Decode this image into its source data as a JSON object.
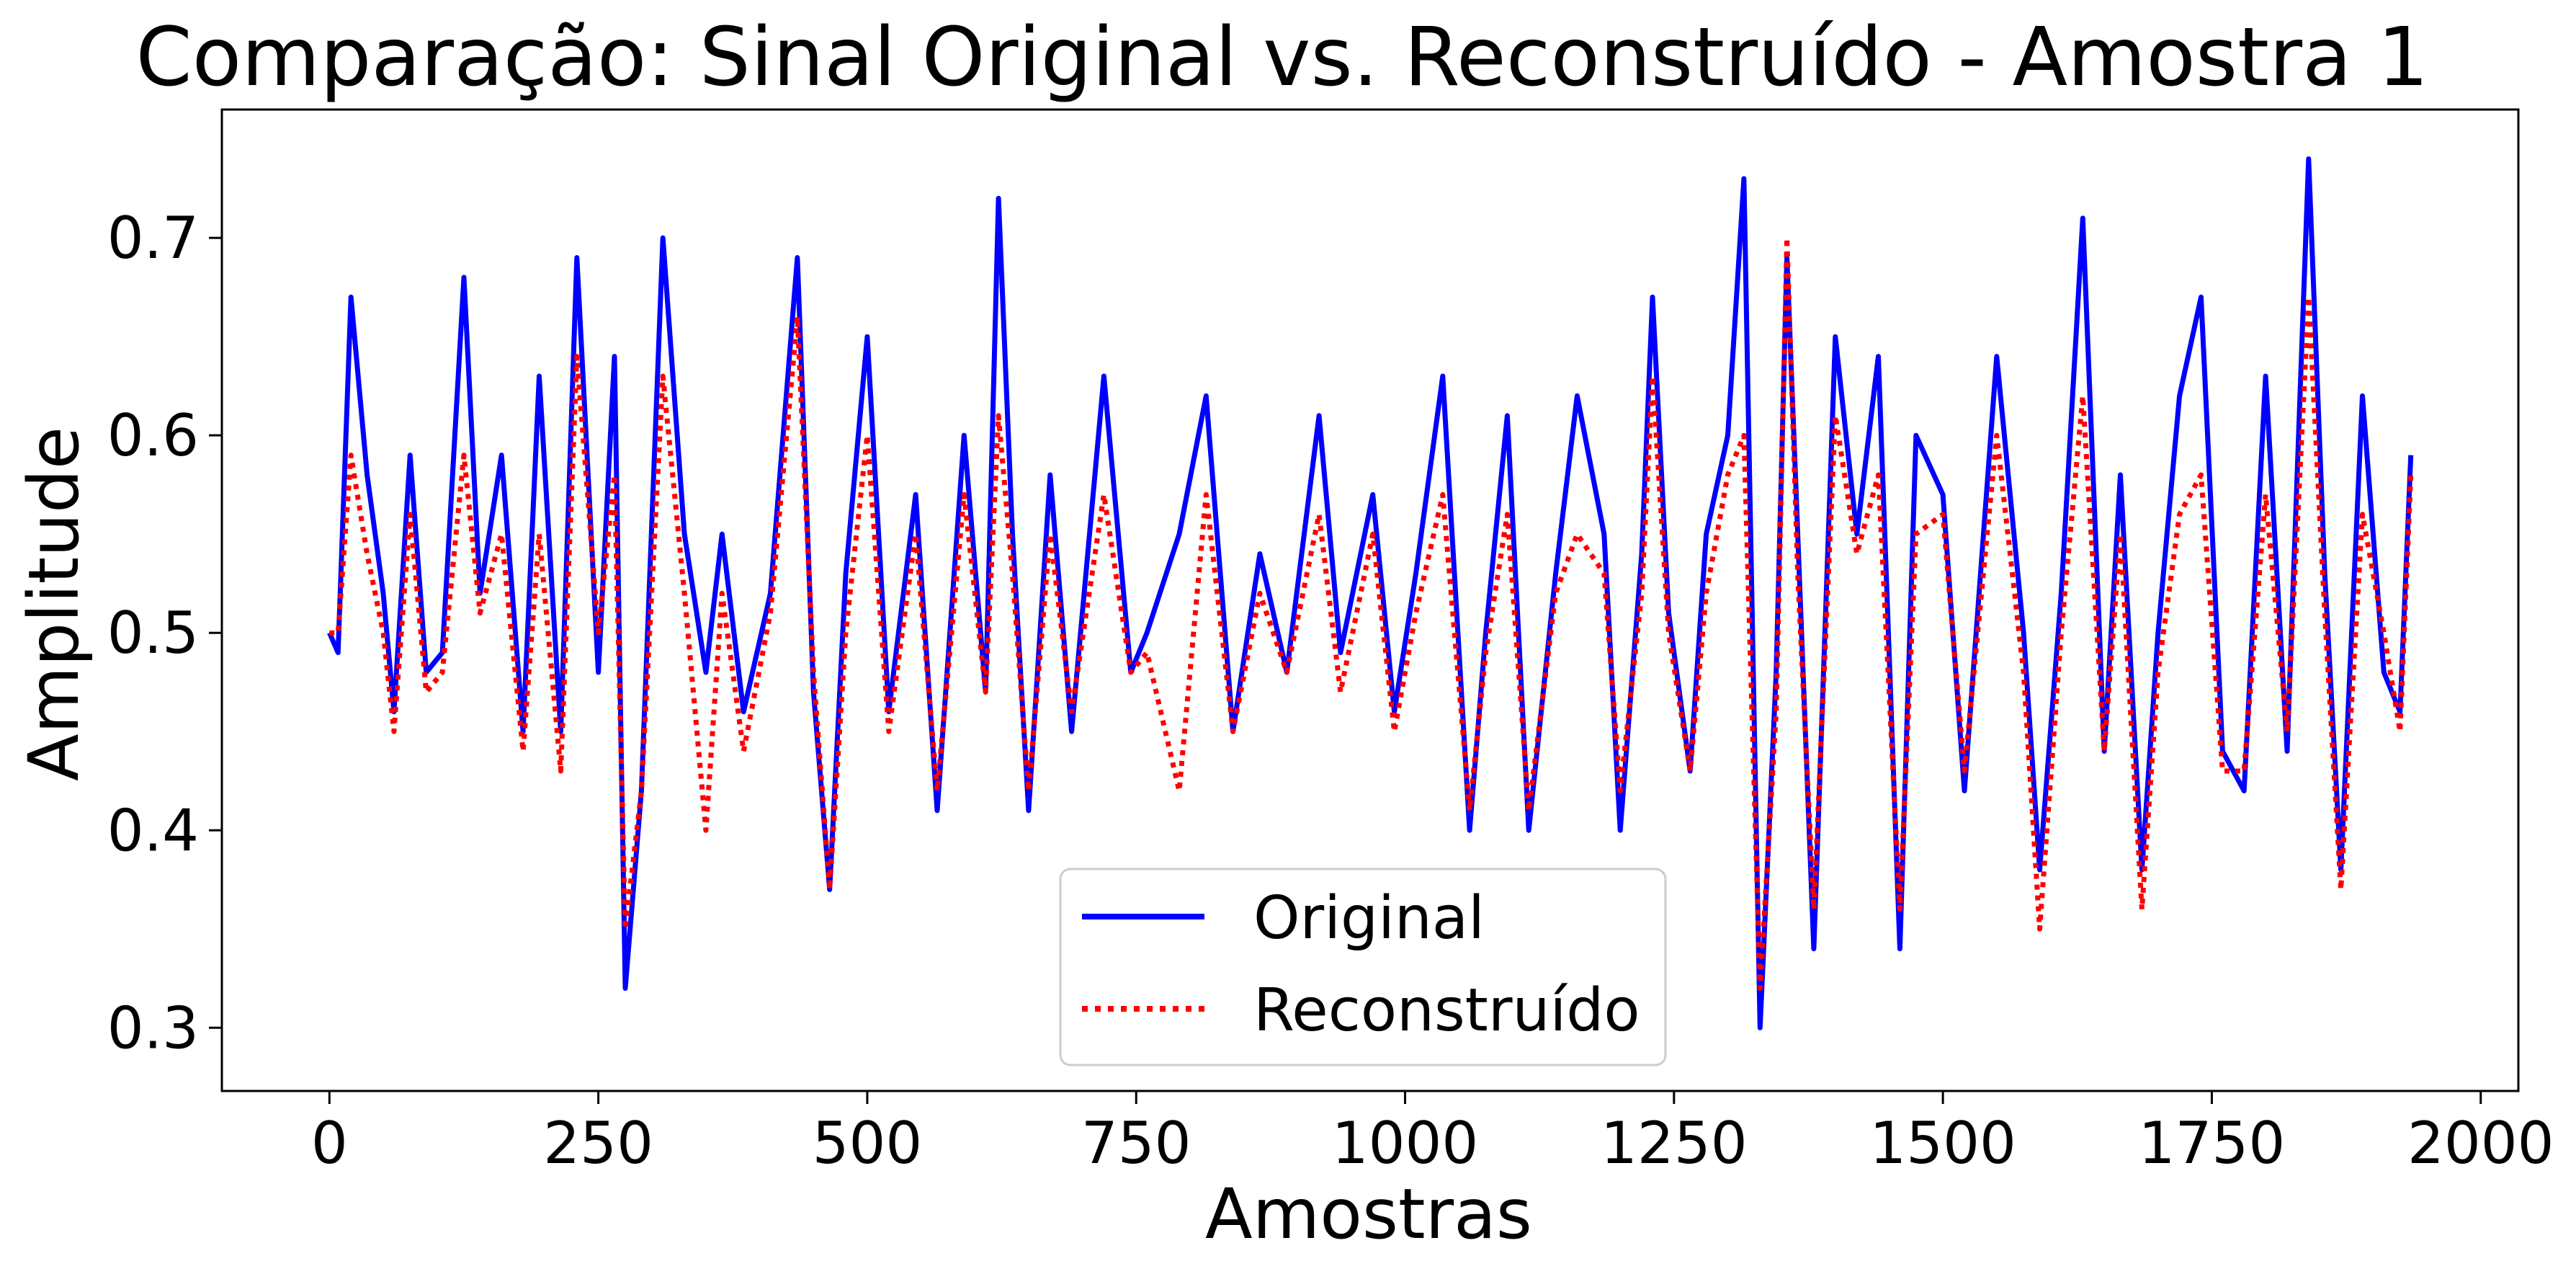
{
  "chart_data": {
    "type": "line",
    "title": "Comparação: Sinal Original vs. Reconstruído - Amostra 1",
    "xlabel": "Amostras",
    "ylabel": "Amplitude",
    "xlim": [
      -100,
      2035
    ],
    "ylim": [
      0.268,
      0.765
    ],
    "xticks": [
      0,
      250,
      500,
      750,
      1000,
      1250,
      1500,
      1750,
      2000
    ],
    "xtick_labels": [
      "0",
      "250",
      "500",
      "750",
      "1000",
      "1250",
      "1500",
      "1750",
      "2000"
    ],
    "yticks": [
      0.3,
      0.4,
      0.5,
      0.6,
      0.7
    ],
    "ytick_labels": [
      "0.3",
      "0.4",
      "0.5",
      "0.6",
      "0.7"
    ],
    "grid": false,
    "legend": "lower-center",
    "series": [
      {
        "name": "Original",
        "color": "#0000ff",
        "style": "solid",
        "x": [
          0,
          8,
          20,
          35,
          50,
          60,
          75,
          90,
          105,
          125,
          140,
          160,
          180,
          195,
          215,
          230,
          250,
          265,
          275,
          290,
          310,
          330,
          350,
          365,
          385,
          410,
          435,
          450,
          465,
          480,
          500,
          520,
          545,
          565,
          590,
          610,
          622,
          635,
          650,
          670,
          690,
          720,
          745,
          760,
          790,
          815,
          840,
          865,
          890,
          920,
          940,
          970,
          990,
          1010,
          1035,
          1060,
          1075,
          1095,
          1115,
          1140,
          1160,
          1185,
          1200,
          1220,
          1230,
          1245,
          1265,
          1280,
          1300,
          1315,
          1330,
          1345,
          1355,
          1365,
          1380,
          1400,
          1420,
          1440,
          1460,
          1475,
          1500,
          1520,
          1550,
          1575,
          1590,
          1610,
          1630,
          1650,
          1665,
          1685,
          1700,
          1720,
          1740,
          1760,
          1780,
          1800,
          1820,
          1840,
          1855,
          1870,
          1890,
          1910,
          1925,
          1935
        ],
        "values": [
          0.5,
          0.49,
          0.67,
          0.58,
          0.52,
          0.46,
          0.59,
          0.48,
          0.49,
          0.68,
          0.52,
          0.59,
          0.45,
          0.63,
          0.45,
          0.69,
          0.48,
          0.64,
          0.32,
          0.42,
          0.7,
          0.55,
          0.48,
          0.55,
          0.46,
          0.52,
          0.69,
          0.47,
          0.37,
          0.53,
          0.65,
          0.46,
          0.57,
          0.41,
          0.6,
          0.47,
          0.72,
          0.55,
          0.41,
          0.58,
          0.45,
          0.63,
          0.48,
          0.5,
          0.55,
          0.62,
          0.45,
          0.54,
          0.48,
          0.61,
          0.49,
          0.57,
          0.46,
          0.53,
          0.63,
          0.4,
          0.5,
          0.61,
          0.4,
          0.53,
          0.62,
          0.55,
          0.4,
          0.54,
          0.67,
          0.51,
          0.43,
          0.55,
          0.6,
          0.73,
          0.3,
          0.48,
          0.69,
          0.55,
          0.34,
          0.65,
          0.55,
          0.64,
          0.34,
          0.6,
          0.57,
          0.42,
          0.64,
          0.5,
          0.38,
          0.52,
          0.71,
          0.44,
          0.58,
          0.38,
          0.5,
          0.62,
          0.67,
          0.44,
          0.42,
          0.63,
          0.44,
          0.74,
          0.53,
          0.38,
          0.62,
          0.48,
          0.46,
          0.59
        ]
      },
      {
        "name": "Reconstruído",
        "color": "#ff0000",
        "style": "dotted",
        "x": [
          0,
          8,
          20,
          35,
          50,
          60,
          75,
          90,
          105,
          125,
          140,
          160,
          180,
          195,
          215,
          230,
          250,
          265,
          275,
          290,
          310,
          330,
          350,
          365,
          385,
          410,
          435,
          450,
          465,
          480,
          500,
          520,
          545,
          565,
          590,
          610,
          622,
          635,
          650,
          670,
          690,
          720,
          745,
          760,
          790,
          815,
          840,
          865,
          890,
          920,
          940,
          970,
          990,
          1010,
          1035,
          1060,
          1075,
          1095,
          1115,
          1140,
          1160,
          1185,
          1200,
          1220,
          1230,
          1245,
          1265,
          1280,
          1300,
          1315,
          1330,
          1345,
          1355,
          1365,
          1380,
          1400,
          1420,
          1440,
          1460,
          1475,
          1500,
          1520,
          1550,
          1575,
          1590,
          1610,
          1630,
          1650,
          1665,
          1685,
          1700,
          1720,
          1740,
          1760,
          1780,
          1800,
          1820,
          1840,
          1855,
          1870,
          1890,
          1910,
          1925,
          1935
        ],
        "values": [
          0.5,
          0.5,
          0.59,
          0.54,
          0.5,
          0.45,
          0.56,
          0.47,
          0.48,
          0.59,
          0.51,
          0.55,
          0.44,
          0.55,
          0.43,
          0.64,
          0.5,
          0.58,
          0.35,
          0.42,
          0.63,
          0.52,
          0.4,
          0.52,
          0.44,
          0.51,
          0.66,
          0.48,
          0.37,
          0.5,
          0.6,
          0.45,
          0.55,
          0.42,
          0.57,
          0.47,
          0.61,
          0.53,
          0.42,
          0.55,
          0.46,
          0.57,
          0.48,
          0.49,
          0.42,
          0.57,
          0.45,
          0.52,
          0.48,
          0.56,
          0.47,
          0.55,
          0.45,
          0.51,
          0.57,
          0.41,
          0.49,
          0.56,
          0.41,
          0.52,
          0.55,
          0.53,
          0.42,
          0.52,
          0.63,
          0.5,
          0.43,
          0.52,
          0.58,
          0.6,
          0.32,
          0.46,
          0.7,
          0.53,
          0.36,
          0.61,
          0.54,
          0.58,
          0.36,
          0.55,
          0.56,
          0.43,
          0.6,
          0.48,
          0.35,
          0.5,
          0.62,
          0.44,
          0.55,
          0.36,
          0.48,
          0.56,
          0.58,
          0.43,
          0.43,
          0.57,
          0.45,
          0.67,
          0.51,
          0.37,
          0.56,
          0.5,
          0.45,
          0.58
        ]
      }
    ]
  }
}
